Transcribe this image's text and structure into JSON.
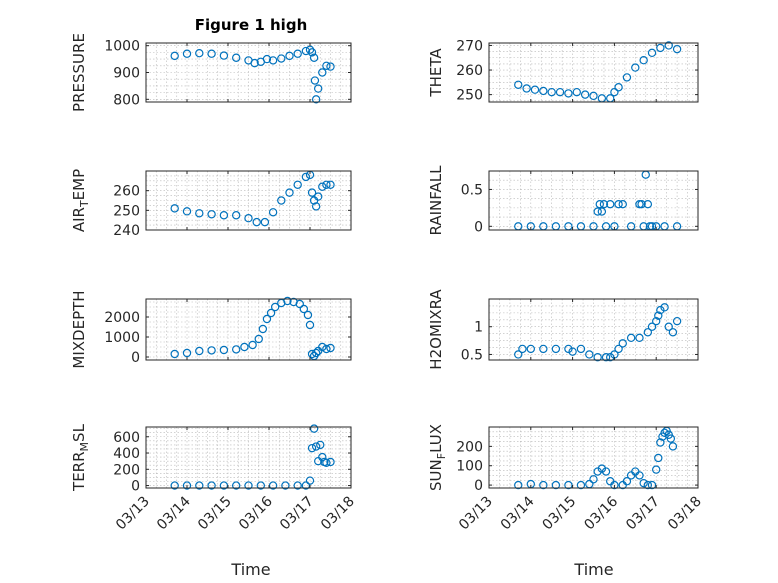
{
  "figure_title": "Figure 1 high",
  "marker_color": "#0072BD",
  "x_tick_labels": [
    "03/13",
    "03/14",
    "03/15",
    "03/16",
    "03/17",
    "03/18"
  ],
  "x_axis_label": "Time",
  "chart_data": [
    {
      "type": "scatter",
      "title": "Figure 1 high",
      "ylabel": "PRESSURE",
      "ylim": [
        790,
        1010
      ],
      "yticks": [
        800,
        900,
        1000
      ],
      "ytick_labels": [
        "800",
        "900",
        "1000"
      ],
      "xlim": [
        13,
        18
      ],
      "grid": true,
      "x": [
        13.7,
        14.0,
        14.3,
        14.6,
        14.9,
        15.2,
        15.5,
        15.65,
        15.8,
        15.95,
        16.1,
        16.3,
        16.5,
        16.7,
        16.9,
        17.0,
        17.05,
        17.1,
        17.12,
        17.15,
        17.2,
        17.3,
        17.4,
        17.5
      ],
      "y": [
        962,
        970,
        972,
        970,
        963,
        955,
        945,
        935,
        940,
        950,
        945,
        952,
        962,
        970,
        980,
        985,
        975,
        955,
        870,
        800,
        840,
        900,
        925,
        922
      ]
    },
    {
      "type": "scatter",
      "ylabel": "THETA",
      "ylim": [
        247,
        271
      ],
      "yticks": [
        250,
        260,
        270
      ],
      "ytick_labels": [
        "250",
        "260",
        "270"
      ],
      "xlim": [
        13,
        18
      ],
      "grid": true,
      "x": [
        13.7,
        13.9,
        14.1,
        14.3,
        14.5,
        14.7,
        14.9,
        15.1,
        15.3,
        15.5,
        15.7,
        15.9,
        16.0,
        16.1,
        16.3,
        16.5,
        16.7,
        16.9,
        17.1,
        17.3,
        17.5
      ],
      "y": [
        254,
        252.5,
        252,
        251.5,
        251,
        251,
        250.5,
        251,
        250,
        249.5,
        248.5,
        248.5,
        251,
        253,
        257,
        261,
        264,
        267,
        269,
        270,
        268.5
      ]
    },
    {
      "type": "scatter",
      "ylabel": "AIR_TEMP",
      "ylim": [
        240,
        270
      ],
      "yticks": [
        240,
        250,
        260
      ],
      "ytick_labels": [
        "240",
        "250",
        "260"
      ],
      "xlim": [
        13,
        18
      ],
      "grid": true,
      "x": [
        13.7,
        14.0,
        14.3,
        14.6,
        14.9,
        15.2,
        15.5,
        15.7,
        15.9,
        16.1,
        16.3,
        16.5,
        16.7,
        16.9,
        17.0,
        17.05,
        17.1,
        17.15,
        17.2,
        17.3,
        17.4,
        17.5
      ],
      "y": [
        251,
        249.5,
        248.5,
        248,
        247.5,
        247.5,
        246,
        244,
        244,
        249,
        255,
        259,
        263,
        267,
        268,
        259,
        255,
        252,
        257,
        262,
        263,
        263
      ]
    },
    {
      "type": "scatter",
      "ylabel": "RAINFALL",
      "ylim": [
        -0.05,
        0.75
      ],
      "yticks": [
        0,
        0.5
      ],
      "ytick_labels": [
        "0",
        "0.5"
      ],
      "xlim": [
        13,
        18
      ],
      "grid": true,
      "x": [
        13.7,
        14.0,
        14.3,
        14.6,
        14.9,
        15.2,
        15.5,
        15.6,
        15.65,
        15.7,
        15.75,
        15.8,
        15.9,
        16.0,
        16.1,
        16.2,
        16.4,
        16.6,
        16.65,
        16.7,
        16.75,
        16.8,
        16.85,
        16.9,
        17.0,
        17.2,
        17.5
      ],
      "y": [
        0,
        0,
        0,
        0,
        0,
        0,
        0,
        0.2,
        0.3,
        0.2,
        0.3,
        0,
        0.3,
        0,
        0.3,
        0.3,
        0,
        0.3,
        0.3,
        0,
        0.7,
        0.3,
        0,
        0,
        0,
        0,
        0
      ]
    },
    {
      "type": "scatter",
      "ylabel": "MIXDEPTH",
      "ylim": [
        -150,
        2900
      ],
      "yticks": [
        0,
        1000,
        2000
      ],
      "ytick_labels": [
        "0",
        "1000",
        "2000"
      ],
      "xlim": [
        13,
        18
      ],
      "grid": true,
      "x": [
        13.7,
        14.0,
        14.3,
        14.6,
        14.9,
        15.2,
        15.4,
        15.6,
        15.75,
        15.85,
        15.95,
        16.05,
        16.15,
        16.3,
        16.45,
        16.6,
        16.75,
        16.85,
        16.95,
        17.0,
        17.05,
        17.1,
        17.15,
        17.2,
        17.3,
        17.4,
        17.5
      ],
      "y": [
        150,
        200,
        300,
        330,
        350,
        380,
        500,
        600,
        900,
        1400,
        1900,
        2200,
        2500,
        2700,
        2800,
        2750,
        2650,
        2400,
        2100,
        1600,
        150,
        50,
        200,
        300,
        500,
        400,
        450
      ]
    },
    {
      "type": "scatter",
      "ylabel": "H2OMIXRA",
      "ylim": [
        0.4,
        1.5
      ],
      "yticks": [
        0.5,
        1
      ],
      "ytick_labels": [
        "0.5",
        "1"
      ],
      "xlim": [
        13,
        18
      ],
      "grid": true,
      "x": [
        13.7,
        13.8,
        14.0,
        14.3,
        14.6,
        14.9,
        15.0,
        15.2,
        15.4,
        15.6,
        15.8,
        15.9,
        16.0,
        16.1,
        16.2,
        16.4,
        16.6,
        16.8,
        16.9,
        17.0,
        17.05,
        17.1,
        17.2,
        17.3,
        17.4,
        17.5
      ],
      "y": [
        0.5,
        0.6,
        0.6,
        0.6,
        0.6,
        0.6,
        0.55,
        0.6,
        0.5,
        0.45,
        0.45,
        0.45,
        0.5,
        0.6,
        0.7,
        0.8,
        0.8,
        0.9,
        1.0,
        1.1,
        1.2,
        1.3,
        1.35,
        1.0,
        0.9,
        1.1
      ]
    },
    {
      "type": "scatter",
      "ylabel": "TERR_MSL",
      "ylim": [
        -30,
        720
      ],
      "yticks": [
        0,
        200,
        400,
        600
      ],
      "ytick_labels": [
        "0",
        "200",
        "400",
        "600"
      ],
      "xlim": [
        13,
        18
      ],
      "grid": true,
      "x": [
        13.7,
        14.0,
        14.3,
        14.6,
        14.9,
        15.2,
        15.5,
        15.8,
        16.1,
        16.4,
        16.7,
        16.9,
        17.0,
        17.05,
        17.1,
        17.15,
        17.2,
        17.25,
        17.3,
        17.35,
        17.4,
        17.5
      ],
      "y": [
        0,
        0,
        0,
        0,
        0,
        0,
        0,
        0,
        0,
        0,
        0,
        0,
        60,
        460,
        700,
        480,
        300,
        500,
        350,
        290,
        280,
        290
      ]
    },
    {
      "type": "scatter",
      "ylabel": "SUN_FLUX",
      "ylim": [
        -15,
        300
      ],
      "yticks": [
        0,
        100,
        200
      ],
      "ytick_labels": [
        "0",
        "100",
        "200"
      ],
      "xlim": [
        13,
        18
      ],
      "grid": true,
      "x": [
        13.7,
        14.0,
        14.3,
        14.6,
        14.9,
        15.2,
        15.4,
        15.5,
        15.6,
        15.7,
        15.8,
        15.9,
        16.0,
        16.2,
        16.3,
        16.4,
        16.5,
        16.6,
        16.7,
        16.8,
        16.9,
        17.0,
        17.05,
        17.1,
        17.15,
        17.2,
        17.25,
        17.3,
        17.35,
        17.4
      ],
      "y": [
        0,
        5,
        0,
        0,
        0,
        0,
        5,
        30,
        70,
        85,
        70,
        20,
        0,
        0,
        20,
        50,
        70,
        50,
        10,
        0,
        0,
        80,
        140,
        220,
        250,
        270,
        280,
        260,
        240,
        200
      ]
    }
  ]
}
